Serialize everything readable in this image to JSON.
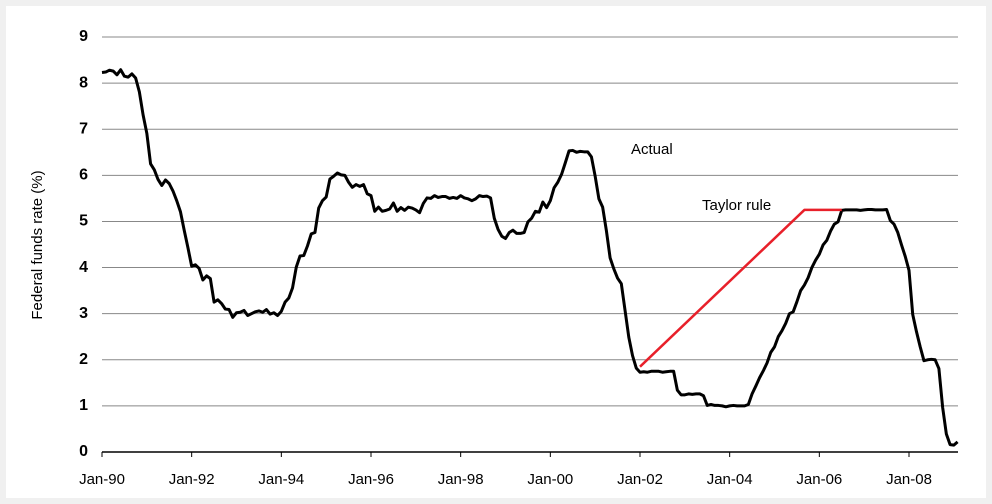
{
  "chart_data": {
    "type": "line",
    "ylabel": "Federal funds rate (%)",
    "ylim": [
      0,
      9
    ],
    "yticks": [
      0,
      1,
      2,
      3,
      4,
      5,
      6,
      7,
      8,
      9
    ],
    "grid": true,
    "xticks": [
      "Jan-90",
      "Jan-92",
      "Jan-94",
      "Jan-96",
      "Jan-98",
      "Jan-00",
      "Jan-02",
      "Jan-04",
      "Jan-06",
      "Jan-08"
    ],
    "x": [
      "Jan-90",
      "Feb-90",
      "Mar-90",
      "Apr-90",
      "May-90",
      "Jun-90",
      "Jul-90",
      "Aug-90",
      "Sep-90",
      "Oct-90",
      "Nov-90",
      "Dec-90",
      "Jan-91",
      "Feb-91",
      "Mar-91",
      "Apr-91",
      "May-91",
      "Jun-91",
      "Jul-91",
      "Aug-91",
      "Sep-91",
      "Oct-91",
      "Nov-91",
      "Dec-91",
      "Jan-92",
      "Feb-92",
      "Mar-92",
      "Apr-92",
      "May-92",
      "Jun-92",
      "Jul-92",
      "Aug-92",
      "Sep-92",
      "Oct-92",
      "Nov-92",
      "Dec-92",
      "Jan-93",
      "Feb-93",
      "Mar-93",
      "Apr-93",
      "May-93",
      "Jun-93",
      "Jul-93",
      "Aug-93",
      "Sep-93",
      "Oct-93",
      "Nov-93",
      "Dec-93",
      "Jan-94",
      "Feb-94",
      "Mar-94",
      "Apr-94",
      "May-94",
      "Jun-94",
      "Jul-94",
      "Aug-94",
      "Sep-94",
      "Oct-94",
      "Nov-94",
      "Dec-94",
      "Jan-95",
      "Feb-95",
      "Mar-95",
      "Apr-95",
      "May-95",
      "Jun-95",
      "Jul-95",
      "Aug-95",
      "Sep-95",
      "Oct-95",
      "Nov-95",
      "Dec-95",
      "Jan-96",
      "Feb-96",
      "Mar-96",
      "Apr-96",
      "May-96",
      "Jun-96",
      "Jul-96",
      "Aug-96",
      "Sep-96",
      "Oct-96",
      "Nov-96",
      "Dec-96",
      "Jan-97",
      "Feb-97",
      "Mar-97",
      "Apr-97",
      "May-97",
      "Jun-97",
      "Jul-97",
      "Aug-97",
      "Sep-97",
      "Oct-97",
      "Nov-97",
      "Dec-97",
      "Jan-98",
      "Feb-98",
      "Mar-98",
      "Apr-98",
      "May-98",
      "Jun-98",
      "Jul-98",
      "Aug-98",
      "Sep-98",
      "Oct-98",
      "Nov-98",
      "Dec-98",
      "Jan-99",
      "Feb-99",
      "Mar-99",
      "Apr-99",
      "May-99",
      "Jun-99",
      "Jul-99",
      "Aug-99",
      "Sep-99",
      "Oct-99",
      "Nov-99",
      "Dec-99",
      "Jan-00",
      "Feb-00",
      "Mar-00",
      "Apr-00",
      "May-00",
      "Jun-00",
      "Jul-00",
      "Aug-00",
      "Sep-00",
      "Oct-00",
      "Nov-00",
      "Dec-00",
      "Jan-01",
      "Feb-01",
      "Mar-01",
      "Apr-01",
      "May-01",
      "Jun-01",
      "Jul-01",
      "Aug-01",
      "Sep-01",
      "Oct-01",
      "Nov-01",
      "Dec-01",
      "Jan-02",
      "Feb-02",
      "Mar-02",
      "Apr-02",
      "May-02",
      "Jun-02",
      "Jul-02",
      "Aug-02",
      "Sep-02",
      "Oct-02",
      "Nov-02",
      "Dec-02",
      "Jan-03",
      "Feb-03",
      "Mar-03",
      "Apr-03",
      "May-03",
      "Jun-03",
      "Jul-03",
      "Aug-03",
      "Sep-03",
      "Oct-03",
      "Nov-03",
      "Dec-03",
      "Jan-04",
      "Feb-04",
      "Mar-04",
      "Apr-04",
      "May-04",
      "Jun-04",
      "Jul-04",
      "Aug-04",
      "Sep-04",
      "Oct-04",
      "Nov-04",
      "Dec-04",
      "Jan-05",
      "Feb-05",
      "Mar-05",
      "Apr-05",
      "May-05",
      "Jun-05",
      "Jul-05",
      "Aug-05",
      "Sep-05",
      "Oct-05",
      "Nov-05",
      "Dec-05",
      "Jan-06",
      "Feb-06",
      "Mar-06",
      "Apr-06",
      "May-06",
      "Jun-06",
      "Jul-06",
      "Aug-06",
      "Sep-06",
      "Oct-06",
      "Nov-06",
      "Dec-06",
      "Jan-07",
      "Feb-07",
      "Mar-07",
      "Apr-07",
      "May-07",
      "Jun-07",
      "Jul-07",
      "Aug-07",
      "Sep-07",
      "Oct-07",
      "Nov-07",
      "Dec-07",
      "Jan-08",
      "Feb-08",
      "Mar-08",
      "Apr-08",
      "May-08",
      "Jun-08",
      "Jul-08",
      "Aug-08",
      "Sep-08",
      "Oct-08",
      "Nov-08",
      "Dec-08",
      "Jan-09",
      "Feb-09"
    ],
    "series": [
      {
        "name": "Actual",
        "color": "#000000",
        "values": [
          8.23,
          8.24,
          8.28,
          8.26,
          8.18,
          8.29,
          8.15,
          8.13,
          8.2,
          8.11,
          7.81,
          7.31,
          6.91,
          6.25,
          6.12,
          5.91,
          5.78,
          5.9,
          5.82,
          5.66,
          5.45,
          5.21,
          4.81,
          4.43,
          4.03,
          4.06,
          3.98,
          3.73,
          3.82,
          3.76,
          3.25,
          3.3,
          3.22,
          3.1,
          3.09,
          2.92,
          3.02,
          3.03,
          3.07,
          2.96,
          3.0,
          3.04,
          3.06,
          3.03,
          3.09,
          2.99,
          3.02,
          2.96,
          3.05,
          3.25,
          3.34,
          3.56,
          4.01,
          4.25,
          4.26,
          4.47,
          4.73,
          4.76,
          5.29,
          5.45,
          5.53,
          5.92,
          5.98,
          6.05,
          6.01,
          6.0,
          5.85,
          5.74,
          5.8,
          5.76,
          5.8,
          5.6,
          5.56,
          5.22,
          5.31,
          5.22,
          5.24,
          5.27,
          5.4,
          5.22,
          5.3,
          5.24,
          5.31,
          5.29,
          5.25,
          5.19,
          5.39,
          5.51,
          5.5,
          5.56,
          5.52,
          5.54,
          5.54,
          5.5,
          5.52,
          5.5,
          5.56,
          5.51,
          5.49,
          5.45,
          5.49,
          5.56,
          5.54,
          5.55,
          5.51,
          5.07,
          4.83,
          4.68,
          4.63,
          4.76,
          4.81,
          4.74,
          4.74,
          4.76,
          4.99,
          5.07,
          5.22,
          5.2,
          5.42,
          5.3,
          5.45,
          5.73,
          5.85,
          6.02,
          6.27,
          6.53,
          6.54,
          6.5,
          6.52,
          6.51,
          6.51,
          6.4,
          5.98,
          5.49,
          5.31,
          4.8,
          4.21,
          3.97,
          3.77,
          3.65,
          3.07,
          2.49,
          2.09,
          1.82,
          1.73,
          1.74,
          1.73,
          1.75,
          1.75,
          1.75,
          1.73,
          1.74,
          1.75,
          1.75,
          1.34,
          1.24,
          1.24,
          1.26,
          1.25,
          1.26,
          1.26,
          1.22,
          1.01,
          1.03,
          1.01,
          1.01,
          1.0,
          0.98,
          1.0,
          1.01,
          1.0,
          1.0,
          1.0,
          1.03,
          1.26,
          1.43,
          1.61,
          1.76,
          1.93,
          2.16,
          2.28,
          2.5,
          2.63,
          2.79,
          3.0,
          3.04,
          3.26,
          3.5,
          3.62,
          3.78,
          4.0,
          4.16,
          4.29,
          4.49,
          4.59,
          4.79,
          4.94,
          4.99,
          5.24,
          5.25,
          5.25,
          5.25,
          5.25,
          5.24,
          5.25,
          5.26,
          5.26,
          5.25,
          5.25,
          5.25,
          5.26,
          5.02,
          4.94,
          4.76,
          4.49,
          4.24,
          3.94,
          2.98,
          2.61,
          2.28,
          1.98,
          2.0,
          2.01,
          2.0,
          1.81,
          0.97,
          0.39,
          0.16,
          0.15,
          0.22
        ]
      },
      {
        "name": "Taylor rule",
        "color": "#e8202a",
        "x": [
          "Jan-02",
          "Sep-05",
          "Jul-06"
        ],
        "values": [
          1.85,
          5.25,
          5.25
        ]
      }
    ]
  }
}
